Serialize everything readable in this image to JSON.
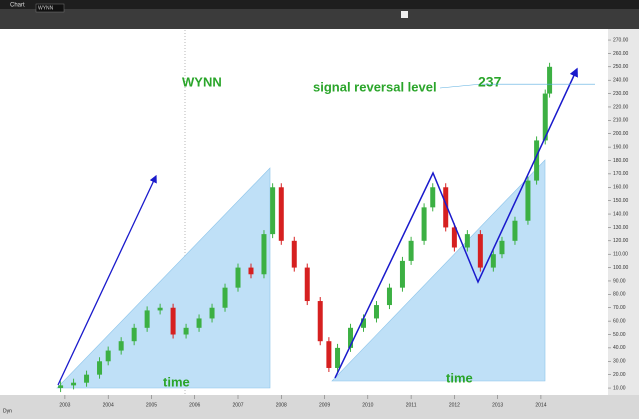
{
  "toolbar": {
    "tab": "Chart",
    "symbol": "WYNN",
    "footer": "Dyn"
  },
  "chart_data": {
    "type": "candlestick",
    "annotations": {
      "ticker": "WYNN",
      "signal": "signal reversal level",
      "level": "237",
      "time_left": "time",
      "time_right": "time"
    },
    "signal_level": 237,
    "colors": {
      "up": "#3cb043",
      "down": "#d62020",
      "text": "#2aa52a",
      "arrow": "#1a1acc",
      "signal": "#5aaee0"
    },
    "x": [
      2002.9,
      2003.2,
      2003.5,
      2003.8,
      2004.0,
      2004.3,
      2004.6,
      2004.9,
      2005.2,
      2005.5,
      2005.8,
      2006.1,
      2006.4,
      2006.7,
      2007.0,
      2007.3,
      2007.6,
      2007.8,
      2008.0,
      2008.3,
      2008.6,
      2008.9,
      2009.1,
      2009.3,
      2009.6,
      2009.9,
      2010.2,
      2010.5,
      2010.8,
      2011.0,
      2011.3,
      2011.5,
      2011.8,
      2012.0,
      2012.3,
      2012.6,
      2012.9,
      2013.1,
      2013.4,
      2013.7,
      2013.9,
      2014.1,
      2014.2
    ],
    "open": [
      10,
      12,
      14,
      20,
      30,
      38,
      45,
      55,
      68,
      70,
      50,
      55,
      62,
      70,
      85,
      100,
      95,
      125,
      160,
      120,
      100,
      75,
      45,
      25,
      40,
      55,
      62,
      72,
      85,
      105,
      120,
      145,
      160,
      130,
      115,
      125,
      100,
      110,
      120,
      135,
      165,
      195,
      230
    ],
    "close": [
      12,
      14,
      20,
      30,
      38,
      45,
      55,
      68,
      70,
      50,
      55,
      62,
      70,
      85,
      100,
      95,
      125,
      160,
      120,
      100,
      75,
      45,
      25,
      40,
      55,
      62,
      72,
      85,
      105,
      120,
      145,
      160,
      130,
      115,
      125,
      100,
      110,
      120,
      135,
      165,
      195,
      230,
      250
    ],
    "high": [
      15,
      17,
      23,
      33,
      41,
      48,
      58,
      71,
      73,
      73,
      58,
      65,
      73,
      88,
      103,
      103,
      128,
      163,
      163,
      123,
      103,
      78,
      48,
      43,
      58,
      65,
      75,
      88,
      108,
      123,
      148,
      163,
      163,
      133,
      128,
      128,
      113,
      123,
      138,
      168,
      198,
      233,
      253
    ],
    "low": [
      7,
      9,
      11,
      17,
      27,
      35,
      42,
      52,
      65,
      47,
      47,
      52,
      59,
      67,
      82,
      92,
      92,
      122,
      117,
      97,
      72,
      42,
      22,
      22,
      37,
      52,
      59,
      69,
      82,
      102,
      117,
      142,
      127,
      112,
      112,
      97,
      97,
      107,
      117,
      132,
      162,
      192,
      227
    ],
    "xlim": [
      2001.5,
      2015.55
    ],
    "xticks": [
      2003,
      2004,
      2005,
      2006,
      2007,
      2008,
      2009,
      2010,
      2011,
      2012,
      2013,
      2014
    ],
    "ylim": [
      6.3,
      277.5
    ],
    "yticks": [
      {
        "value": 10,
        "label": "10.00"
      },
      {
        "value": 20,
        "label": "20.00"
      },
      {
        "value": 30,
        "label": "30.00"
      },
      {
        "value": 40,
        "label": "40.00"
      },
      {
        "value": 50,
        "label": "50.00"
      },
      {
        "value": 60,
        "label": "60.00"
      },
      {
        "value": 70,
        "label": "70.00"
      },
      {
        "value": 80,
        "label": "80.00"
      },
      {
        "value": 90,
        "label": "90.00"
      },
      {
        "value": 100,
        "label": "100.00"
      },
      {
        "value": 110,
        "label": "110.00"
      },
      {
        "value": 120,
        "label": "120.00"
      },
      {
        "value": 130,
        "label": "130.00"
      },
      {
        "value": 140,
        "label": "140.00"
      },
      {
        "value": 150,
        "label": "150.00"
      },
      {
        "value": 160,
        "label": "160.00"
      },
      {
        "value": 170,
        "label": "170.00"
      },
      {
        "value": 180,
        "label": "180.00"
      },
      {
        "value": 190,
        "label": "190.00"
      },
      {
        "value": 200,
        "label": "200.00"
      },
      {
        "value": 210,
        "label": "210.00"
      },
      {
        "value": 220,
        "label": "220.00"
      },
      {
        "value": 230,
        "label": "230.00"
      },
      {
        "value": 240,
        "label": "240.00"
      },
      {
        "value": 250,
        "label": "250.00"
      },
      {
        "value": 260,
        "label": "260.00"
      },
      {
        "value": 270,
        "label": "270.00"
      }
    ]
  }
}
